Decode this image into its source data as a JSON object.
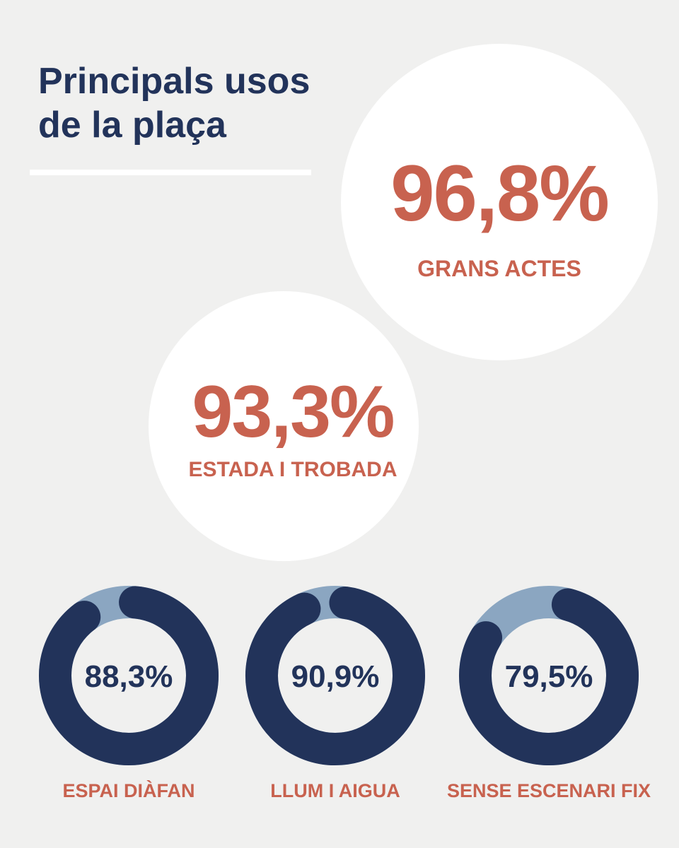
{
  "title": [
    "Principals usos",
    "de la plaça"
  ],
  "headline_stats": [
    {
      "value": "96,8%",
      "label": "GRANS ACTES"
    },
    {
      "value": "93,3%",
      "label": "ESTADA I TROBADA"
    }
  ],
  "chart_data": {
    "type": "donut",
    "categories": [
      "ESPAI DIÀFAN",
      "LLUM I AIGUA",
      "SENSE ESCENARI FIX"
    ],
    "values": [
      88.3,
      90.9,
      79.5
    ],
    "value_labels": [
      "88,3%",
      "90,9%",
      "79,5%"
    ],
    "max": 100,
    "colors": {
      "filled": "#22335a",
      "remainder": "#8ba6c1",
      "label": "#c8624f",
      "value": "#22335a"
    }
  }
}
